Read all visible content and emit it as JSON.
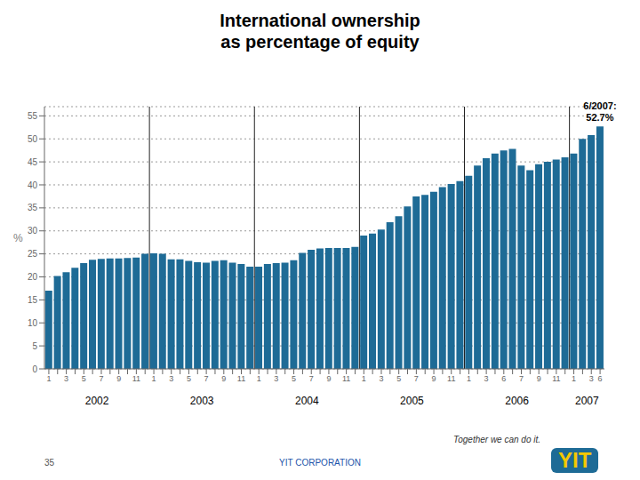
{
  "chart_data": {
    "type": "bar",
    "title": "International ownership\nas percentage of equity",
    "ylabel": "%",
    "categories": [
      "1",
      null,
      "3",
      null,
      "5",
      null,
      "7",
      null,
      "9",
      null,
      "11",
      null,
      "1",
      null,
      "3",
      null,
      "5",
      null,
      "7",
      null,
      "9",
      null,
      "11",
      null,
      "1",
      null,
      "3",
      null,
      "5",
      null,
      "7",
      null,
      "9",
      null,
      "11",
      null,
      "1",
      null,
      "3",
      null,
      "5",
      null,
      "7",
      null,
      "9",
      null,
      "11",
      null,
      "1",
      null,
      "3",
      null,
      "6",
      null,
      "7",
      null,
      "9",
      null,
      "11",
      null,
      "1",
      null,
      "3",
      "6"
    ],
    "values": [
      17.0,
      20.2,
      21.0,
      22.0,
      23.0,
      23.7,
      23.9,
      24.0,
      24.0,
      24.1,
      24.2,
      25.0,
      25.1,
      25.0,
      23.8,
      23.8,
      23.5,
      23.2,
      23.1,
      23.5,
      23.6,
      23.1,
      22.8,
      22.2,
      22.2,
      22.8,
      23.0,
      23.1,
      23.6,
      25.2,
      25.9,
      26.2,
      26.3,
      26.3,
      26.3,
      26.5,
      29.0,
      29.4,
      30.3,
      31.9,
      33.2,
      35.3,
      37.5,
      37.8,
      38.5,
      39.5,
      40.2,
      40.8,
      42.0,
      44.2,
      45.8,
      46.8,
      47.5,
      47.8,
      44.2,
      43.2,
      44.5,
      45.0,
      45.5,
      46.0,
      46.8,
      50.0,
      50.8,
      52.7
    ],
    "color": "#1e6b96",
    "ylim": [
      0,
      57
    ],
    "yticks": [
      0,
      5,
      10,
      15,
      20,
      25,
      30,
      35,
      40,
      45,
      50,
      55
    ],
    "grid": true,
    "x_groups": [
      {
        "label": "2002",
        "from": 0,
        "to": 11
      },
      {
        "label": "2003",
        "from": 12,
        "to": 23
      },
      {
        "label": "2004",
        "from": 24,
        "to": 35
      },
      {
        "label": "2005",
        "from": 36,
        "to": 47
      },
      {
        "label": "2006",
        "from": 48,
        "to": 59
      },
      {
        "label": "2007",
        "from": 60,
        "to": 63
      }
    ],
    "annotations": [
      {
        "text": "6/2007:\n52.7%",
        "index": 63
      }
    ],
    "footer": [
      "35",
      "YIT CORPORATION",
      "Together we can do it.",
      "YIT"
    ]
  }
}
